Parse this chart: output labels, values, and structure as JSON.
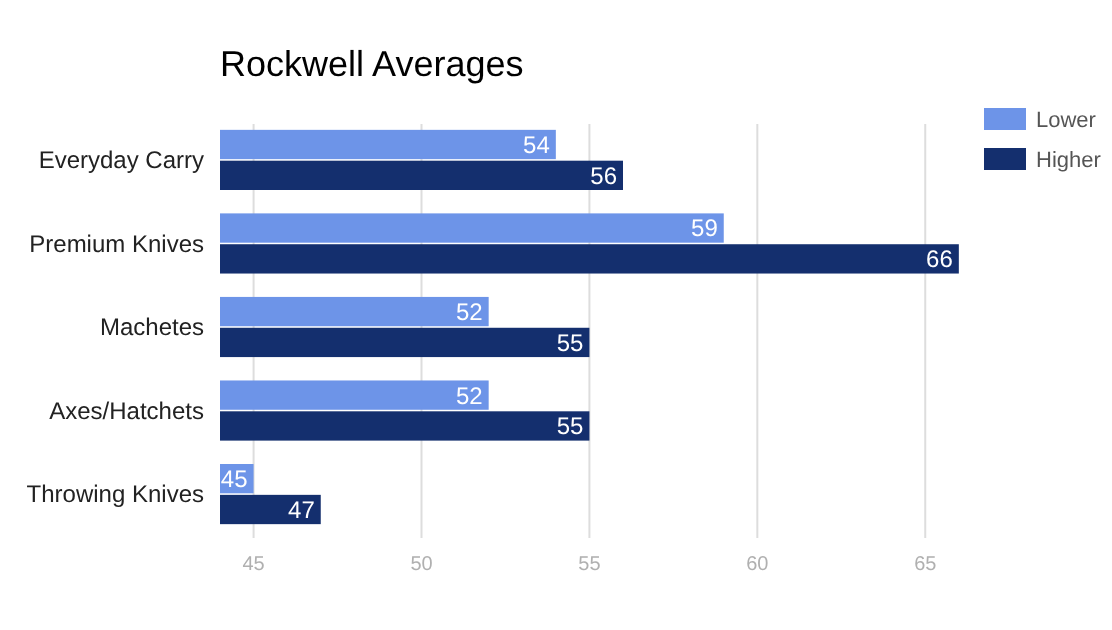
{
  "chart_data": {
    "type": "bar",
    "orientation": "horizontal",
    "title": "Rockwell Averages",
    "categories": [
      "Everyday Carry",
      "Premium Knives",
      "Machetes",
      "Axes/Hatchets",
      "Throwing Knives"
    ],
    "series": [
      {
        "name": "Lower",
        "color": "#6d94e8",
        "values": [
          54,
          59,
          52,
          52,
          45
        ]
      },
      {
        "name": "Higher",
        "color": "#142f6e",
        "values": [
          56,
          66,
          55,
          55,
          47
        ]
      }
    ],
    "xlim": [
      44,
      68
    ],
    "xticks": [
      45,
      50,
      55,
      60,
      65
    ],
    "grid": "x",
    "legend": "top right",
    "data_labels": true
  }
}
